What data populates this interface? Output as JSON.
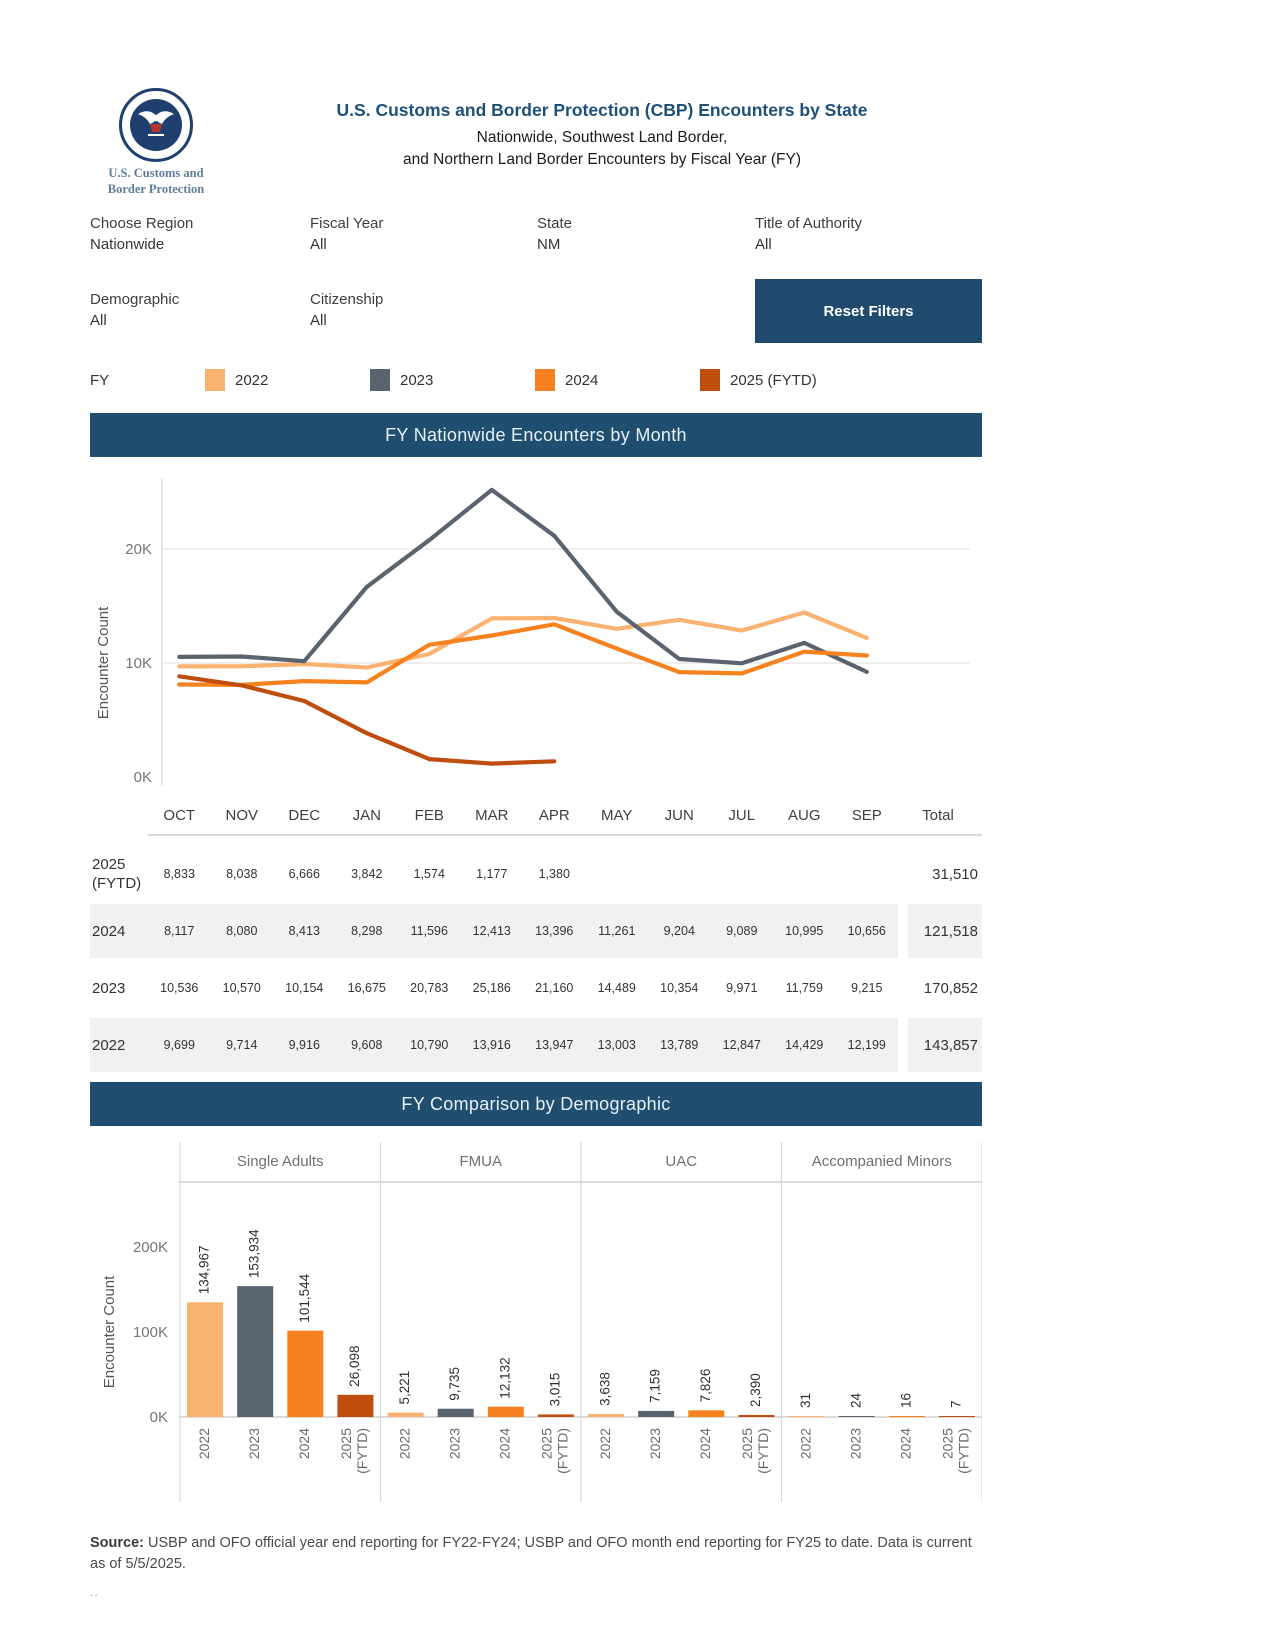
{
  "header": {
    "logo_caption_line1": "U.S. Customs and",
    "logo_caption_line2": "Border Protection",
    "title": "U.S. Customs and Border Protection (CBP) Encounters by State",
    "subtitle_line1": "Nationwide, Southwest Land Border,",
    "subtitle_line2": "and Northern Land Border Encounters by Fiscal Year (FY)"
  },
  "filters": [
    {
      "label": "Choose Region",
      "value": "Nationwide"
    },
    {
      "label": "Fiscal Year",
      "value": "All"
    },
    {
      "label": "State",
      "value": "NM"
    },
    {
      "label": "Title of Authority",
      "value": "All"
    },
    {
      "label": "Demographic",
      "value": "All"
    },
    {
      "label": "Citizenship",
      "value": "All"
    }
  ],
  "reset_button_label": "Reset Filters",
  "legend": {
    "title": "FY",
    "items": [
      {
        "label": "2022",
        "color": "#f9b26f"
      },
      {
        "label": "2023",
        "color": "#5a6370"
      },
      {
        "label": "2024",
        "color": "#f5821f"
      },
      {
        "label": "2025 (FYTD)",
        "color": "#bf4e0e"
      }
    ]
  },
  "table": {
    "total_label": "Total"
  },
  "chart_data": [
    {
      "type": "line",
      "title": "FY Nationwide Encounters by Month",
      "xlabel": "",
      "ylabel": "Encounter Count",
      "x": [
        "OCT",
        "NOV",
        "DEC",
        "JAN",
        "FEB",
        "MAR",
        "APR",
        "MAY",
        "JUN",
        "JUL",
        "AUG",
        "SEP"
      ],
      "yticks": [
        0,
        10000,
        20000
      ],
      "ytick_labels": [
        "0K",
        "10K",
        "20K"
      ],
      "ylim": [
        0,
        27000
      ],
      "grid": true,
      "series": [
        {
          "name": "2025 (FYTD)",
          "color": "#bf4e0e",
          "values": [
            8833,
            8038,
            6666,
            3842,
            1574,
            1177,
            1380
          ],
          "total": 31510
        },
        {
          "name": "2024",
          "color": "#f5821f",
          "values": [
            8117,
            8080,
            8413,
            8298,
            11596,
            12413,
            13396,
            11261,
            9204,
            9089,
            10995,
            10656
          ],
          "total": 121518
        },
        {
          "name": "2023",
          "color": "#5a6370",
          "values": [
            10536,
            10570,
            10154,
            16675,
            20783,
            25186,
            21160,
            14489,
            10354,
            9971,
            11759,
            9215
          ],
          "total": 170852
        },
        {
          "name": "2022",
          "color": "#f9b26f",
          "values": [
            9699,
            9714,
            9916,
            9608,
            10790,
            13916,
            13947,
            13003,
            13789,
            12847,
            14429,
            12199
          ],
          "total": 143857
        }
      ]
    },
    {
      "type": "bar",
      "title": "FY Comparison by Demographic",
      "xlabel": "",
      "ylabel": "Encounter Count",
      "yticks": [
        0,
        100000,
        200000
      ],
      "ytick_labels": [
        "0K",
        "100K",
        "200K"
      ],
      "ylim": [
        0,
        240000
      ],
      "grid": false,
      "categories": [
        "2022",
        "2023",
        "2024",
        "2025 (FYTD)"
      ],
      "category_colors": [
        "#f9b26f",
        "#5a6370",
        "#f5821f",
        "#bf4e0e"
      ],
      "groups": [
        {
          "name": "Single Adults",
          "values": [
            134967,
            153934,
            101544,
            26098
          ]
        },
        {
          "name": "FMUA",
          "values": [
            5221,
            9735,
            12132,
            3015
          ]
        },
        {
          "name": "UAC",
          "values": [
            3638,
            7159,
            7826,
            2390
          ]
        },
        {
          "name": "Accompanied Minors",
          "values": [
            31,
            24,
            16,
            7
          ]
        }
      ]
    }
  ],
  "source": {
    "label": "Source:",
    "text": " USBP and OFO official year end reporting for FY22-FY24; USBP and OFO month end reporting for FY25 to date. Data is current as of 5/5/2025.",
    "footnote": ".."
  }
}
